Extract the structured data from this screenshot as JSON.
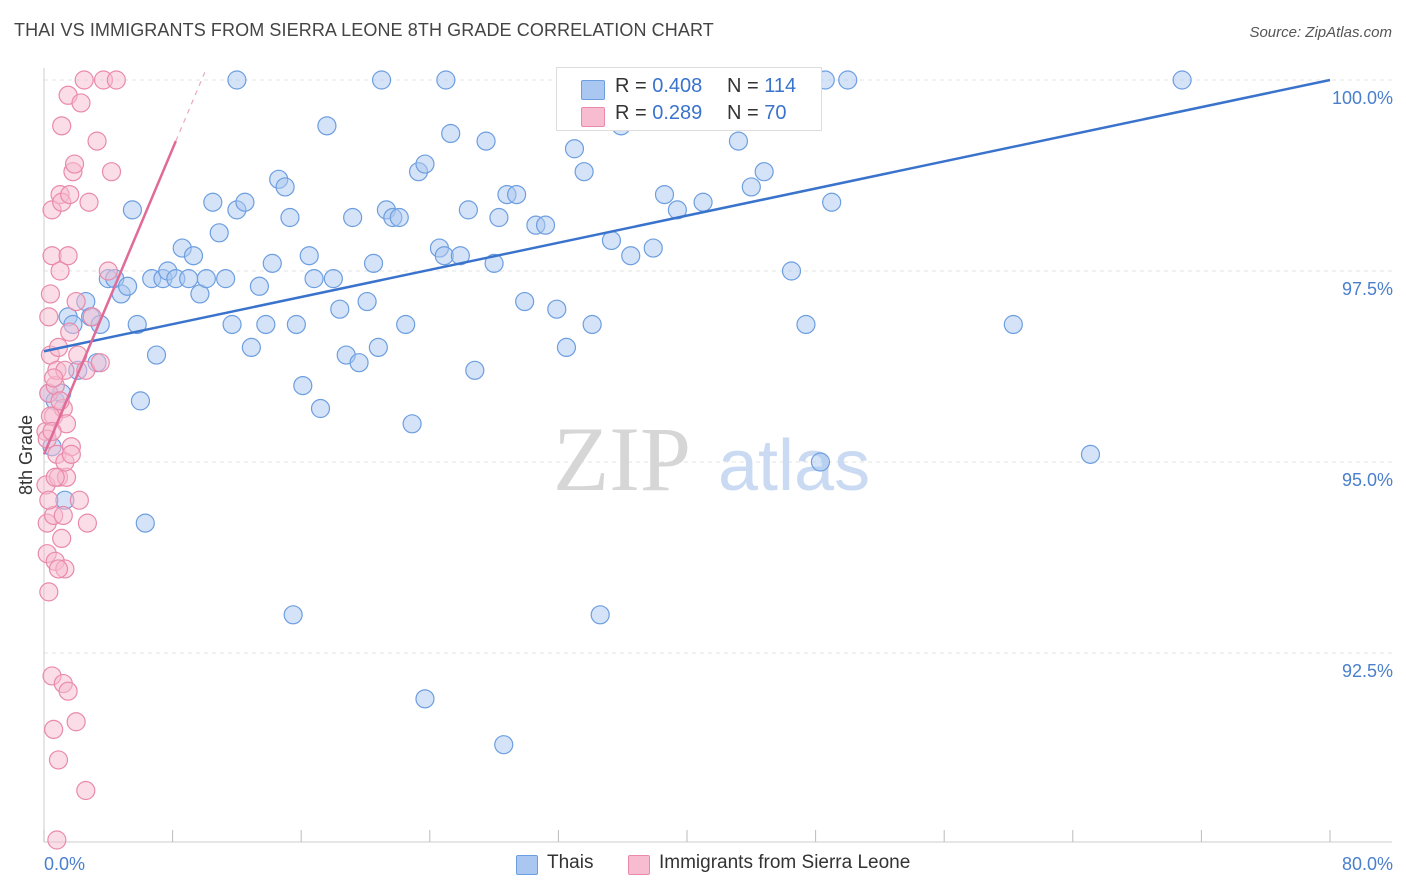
{
  "title": "THAI VS IMMIGRANTS FROM SIERRA LEONE 8TH GRADE CORRELATION CHART",
  "source": "Source: ZipAtlas.com",
  "watermark": {
    "zip": "ZIP",
    "atlas": "atlas"
  },
  "legend": {
    "rows": [
      {
        "r_label": "R =",
        "r_value": "0.408",
        "n_label": "N =",
        "n_value": "114",
        "color": "#a9c7f0",
        "border": "#6d9ee0"
      },
      {
        "r_label": "R =",
        "r_value": "0.289",
        "n_label": "N =",
        "n_value": "70",
        "color": "#f7bcd0",
        "border": "#e98aaa"
      }
    ]
  },
  "chart_data": {
    "type": "scatter",
    "title": "THAI VS IMMIGRANTS FROM SIERRA LEONE 8TH GRADE CORRELATION CHART",
    "xlabel": "",
    "ylabel": "8th Grade",
    "xlim": [
      0,
      80
    ],
    "ylim": [
      90.0,
      100.4
    ],
    "x_tick_labels": [
      "0.0%",
      "80.0%"
    ],
    "y_ticks": [
      92.5,
      95.0,
      97.5,
      100.0
    ],
    "y_tick_labels": [
      "92.5%",
      "95.0%",
      "97.5%",
      "100.0%"
    ],
    "grid": true,
    "legend_position": "top-center",
    "series": [
      {
        "name": "Thais",
        "color": "#a9c7f0",
        "stroke": "#6d9ee0",
        "line_color": "#3a73cc",
        "trend": {
          "x0": 0,
          "y0": 96.45,
          "x1": 80,
          "y1": 100.0,
          "dashed_to": 80
        },
        "points": [
          [
            0.3,
            95.9
          ],
          [
            0.5,
            95.2
          ],
          [
            0.7,
            95.8
          ],
          [
            1.1,
            95.9
          ],
          [
            1.3,
            94.5
          ],
          [
            1.5,
            96.9
          ],
          [
            1.8,
            96.8
          ],
          [
            2.1,
            96.2
          ],
          [
            2.6,
            97.1
          ],
          [
            2.9,
            96.9
          ],
          [
            3.3,
            96.3
          ],
          [
            3.5,
            96.8
          ],
          [
            4.0,
            97.4
          ],
          [
            4.4,
            97.4
          ],
          [
            4.8,
            97.2
          ],
          [
            5.2,
            97.3
          ],
          [
            5.5,
            98.3
          ],
          [
            5.8,
            96.8
          ],
          [
            6.0,
            95.8
          ],
          [
            6.3,
            94.2
          ],
          [
            6.7,
            97.4
          ],
          [
            7.0,
            96.4
          ],
          [
            7.4,
            97.4
          ],
          [
            7.7,
            97.5
          ],
          [
            8.2,
            97.4
          ],
          [
            8.6,
            97.8
          ],
          [
            9.0,
            97.4
          ],
          [
            9.3,
            97.7
          ],
          [
            9.7,
            97.2
          ],
          [
            10.1,
            97.4
          ],
          [
            10.5,
            98.4
          ],
          [
            10.9,
            98.0
          ],
          [
            11.3,
            97.4
          ],
          [
            11.7,
            96.8
          ],
          [
            12.0,
            98.3
          ],
          [
            12.5,
            98.4
          ],
          [
            12.9,
            96.5
          ],
          [
            13.4,
            97.3
          ],
          [
            13.8,
            96.8
          ],
          [
            14.2,
            97.6
          ],
          [
            14.6,
            98.7
          ],
          [
            15.0,
            98.6
          ],
          [
            15.3,
            98.2
          ],
          [
            15.7,
            96.8
          ],
          [
            16.1,
            96.0
          ],
          [
            16.5,
            97.7
          ],
          [
            16.8,
            97.4
          ],
          [
            17.2,
            95.7
          ],
          [
            17.6,
            99.4
          ],
          [
            18.0,
            97.4
          ],
          [
            18.4,
            97.0
          ],
          [
            18.8,
            96.4
          ],
          [
            19.2,
            98.2
          ],
          [
            19.6,
            96.3
          ],
          [
            20.1,
            97.1
          ],
          [
            20.5,
            97.6
          ],
          [
            20.8,
            96.5
          ],
          [
            21.3,
            98.3
          ],
          [
            21.7,
            98.2
          ],
          [
            22.1,
            98.2
          ],
          [
            22.5,
            96.8
          ],
          [
            22.9,
            95.5
          ],
          [
            23.3,
            98.8
          ],
          [
            23.7,
            98.9
          ],
          [
            24.6,
            97.8
          ],
          [
            24.9,
            97.7
          ],
          [
            25.3,
            99.3
          ],
          [
            25.9,
            97.7
          ],
          [
            26.4,
            98.3
          ],
          [
            26.8,
            96.2
          ],
          [
            27.5,
            99.2
          ],
          [
            28.0,
            97.6
          ],
          [
            28.3,
            98.2
          ],
          [
            28.8,
            98.5
          ],
          [
            29.4,
            98.5
          ],
          [
            29.9,
            97.1
          ],
          [
            30.6,
            98.1
          ],
          [
            31.2,
            98.1
          ],
          [
            31.9,
            97.0
          ],
          [
            32.5,
            96.5
          ],
          [
            33.0,
            99.1
          ],
          [
            33.6,
            98.8
          ],
          [
            34.1,
            96.8
          ],
          [
            34.8,
            99.8
          ],
          [
            35.3,
            97.9
          ],
          [
            35.9,
            99.4
          ],
          [
            36.5,
            97.7
          ],
          [
            37.2,
            99.6
          ],
          [
            37.9,
            97.8
          ],
          [
            38.6,
            98.5
          ],
          [
            39.4,
            98.3
          ],
          [
            40.2,
            99.7
          ],
          [
            41.0,
            98.4
          ],
          [
            41.8,
            100.0
          ],
          [
            42.5,
            99.5
          ],
          [
            43.2,
            99.2
          ],
          [
            44.0,
            98.6
          ],
          [
            44.8,
            98.8
          ],
          [
            45.6,
            100.0
          ],
          [
            46.5,
            97.5
          ],
          [
            47.4,
            96.8
          ],
          [
            48.3,
            95.0
          ],
          [
            49.0,
            98.4
          ],
          [
            50.0,
            100.0
          ],
          [
            23.7,
            91.9
          ],
          [
            28.6,
            91.3
          ],
          [
            15.5,
            93.0
          ],
          [
            34.6,
            93.0
          ],
          [
            48.6,
            100.0
          ],
          [
            12.0,
            100.0
          ],
          [
            38.0,
            100.0
          ],
          [
            21.0,
            100.0
          ],
          [
            60.3,
            96.8
          ],
          [
            65.1,
            95.1
          ],
          [
            70.8,
            100.0
          ],
          [
            25.0,
            100.0
          ]
        ]
      },
      {
        "name": "Immigrants from Sierra Leone",
        "color": "#f7bcd0",
        "stroke": "#e98aaa",
        "line_color": "#e06b97",
        "trend": {
          "x0": 0,
          "y0": 95.1,
          "x1": 8.2,
          "y1": 99.2,
          "dashed_to": 10.0
        },
        "points": [
          [
            0.1,
            95.4
          ],
          [
            0.1,
            94.7
          ],
          [
            0.2,
            94.2
          ],
          [
            0.2,
            93.8
          ],
          [
            0.3,
            93.3
          ],
          [
            0.3,
            95.9
          ],
          [
            0.4,
            96.4
          ],
          [
            0.4,
            97.2
          ],
          [
            0.5,
            97.7
          ],
          [
            0.5,
            98.3
          ],
          [
            0.6,
            95.6
          ],
          [
            0.6,
            94.3
          ],
          [
            0.7,
            93.7
          ],
          [
            0.7,
            96.0
          ],
          [
            0.8,
            96.2
          ],
          [
            0.8,
            95.1
          ],
          [
            0.9,
            94.8
          ],
          [
            0.9,
            96.5
          ],
          [
            1.0,
            97.5
          ],
          [
            1.0,
            98.5
          ],
          [
            1.1,
            99.4
          ],
          [
            1.1,
            98.4
          ],
          [
            1.2,
            95.7
          ],
          [
            1.2,
            94.3
          ],
          [
            1.3,
            93.6
          ],
          [
            1.3,
            96.2
          ],
          [
            1.4,
            95.5
          ],
          [
            1.4,
            94.8
          ],
          [
            1.5,
            97.7
          ],
          [
            1.5,
            99.8
          ],
          [
            1.6,
            98.5
          ],
          [
            1.6,
            96.7
          ],
          [
            1.7,
            95.2
          ],
          [
            1.8,
            98.8
          ],
          [
            1.9,
            98.9
          ],
          [
            2.0,
            97.1
          ],
          [
            2.1,
            96.4
          ],
          [
            2.2,
            94.5
          ],
          [
            2.3,
            99.7
          ],
          [
            2.5,
            100.0
          ],
          [
            2.6,
            96.2
          ],
          [
            2.7,
            94.2
          ],
          [
            2.8,
            98.4
          ],
          [
            3.0,
            96.9
          ],
          [
            3.3,
            99.2
          ],
          [
            3.5,
            96.3
          ],
          [
            3.7,
            100.0
          ],
          [
            4.0,
            97.5
          ],
          [
            4.2,
            98.8
          ],
          [
            4.5,
            100.0
          ],
          [
            0.3,
            96.9
          ],
          [
            0.5,
            92.2
          ],
          [
            0.6,
            91.5
          ],
          [
            0.9,
            91.1
          ],
          [
            1.2,
            92.1
          ],
          [
            1.5,
            92.0
          ],
          [
            2.0,
            91.6
          ],
          [
            2.6,
            90.7
          ],
          [
            0.8,
            90.0
          ],
          [
            1.0,
            95.8
          ],
          [
            0.2,
            95.3
          ],
          [
            0.4,
            95.6
          ],
          [
            0.7,
            94.8
          ],
          [
            1.3,
            95.0
          ],
          [
            0.9,
            93.6
          ],
          [
            0.6,
            96.1
          ],
          [
            1.1,
            94.0
          ],
          [
            0.3,
            94.5
          ],
          [
            1.7,
            95.1
          ],
          [
            0.5,
            95.4
          ]
        ]
      }
    ]
  },
  "bottom_legend": [
    {
      "label": "Thais",
      "color": "#a9c7f0",
      "border": "#6d9ee0"
    },
    {
      "label": "Immigrants from Sierra Leone",
      "color": "#f7bcd0",
      "border": "#e98aaa"
    }
  ]
}
